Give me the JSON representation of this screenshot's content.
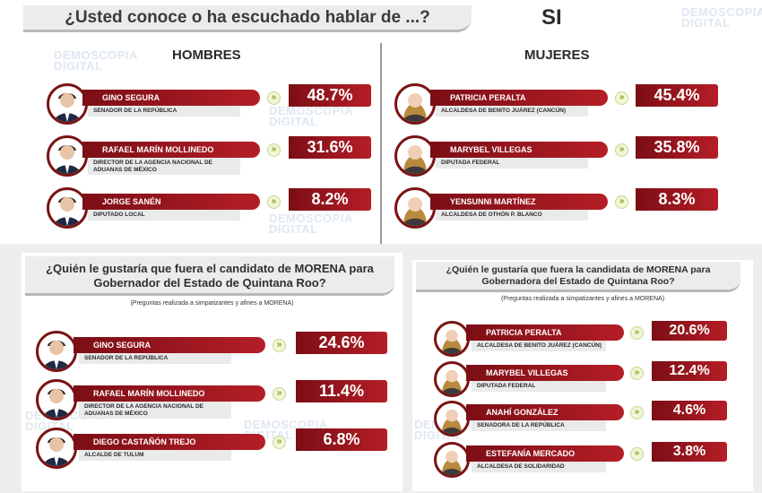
{
  "watermark": {
    "line1": "DEMOSCOPIA",
    "line2": "DIGITAL"
  },
  "top": {
    "title": "¿Usted conoce o ha escuchado hablar de ...?",
    "si_label": "SI",
    "men_header": "HOMBRES",
    "women_header": "MUJERES"
  },
  "bottom_left": {
    "question": "¿Quién le gustaría que fuera el candidato de MORENA para Gobernador del Estado de Quintana Roo?",
    "note": "(Preguntas realizada a simpatizantes y afines a MORENA)"
  },
  "bottom_right": {
    "question": "¿Quién le gustaría que fuera la candidata de MORENA para Gobernadora del Estado de Quintana Roo?",
    "note": "(Preguntas realizada a simpatizantes y afines a MORENA)"
  },
  "colors": {
    "bar_dark": "#7c0e16",
    "bar_light": "#b51e26",
    "arrow_green": "#8aa21b",
    "panel_bg": "#ffffff"
  },
  "chart_data": [
    {
      "type": "bar",
      "title": "¿Usted conoce o ha escuchado hablar de ...?",
      "subtitle": "HOMBRES",
      "unit": "%",
      "categories": [
        "GINO SEGURA",
        "RAFAEL MARÍN MOLLINEDO",
        "JORGE SANÉN"
      ],
      "roles": [
        "SENADOR DE LA REPÚBLICA",
        "DIRECTOR DE LA AGENCIA NACIONAL DE ADUANAS DE MÉXICO",
        "DIPUTADO LOCAL"
      ],
      "values": [
        48.7,
        31.6,
        8.2
      ],
      "labels": [
        "48.7%",
        "31.6%",
        "8.2%"
      ]
    },
    {
      "type": "bar",
      "title": "¿Usted conoce o ha escuchado hablar de ...?",
      "subtitle": "MUJERES",
      "unit": "%",
      "categories": [
        "PATRICIA PERALTA",
        "MARYBEL VILLEGAS",
        "YENSUNNI MARTÍNEZ"
      ],
      "roles": [
        "ALCALDESA DE BENITO JUÁREZ (CANCÚN)",
        "DIPUTADA FEDERAL",
        "ALCALDESA DE OTHÓN P. BLANCO"
      ],
      "values": [
        45.4,
        35.8,
        8.3
      ],
      "labels": [
        "45.4%",
        "35.8%",
        "8.3%"
      ]
    },
    {
      "type": "bar",
      "title": "¿Quién le gustaría que fuera el candidato de MORENA para Gobernador del Estado de Quintana Roo?",
      "unit": "%",
      "categories": [
        "GINO SEGURA",
        "RAFAEL MARÍN MOLLINEDO",
        "DIEGO CASTAÑÓN TREJO"
      ],
      "roles": [
        "SENADOR DE LA REPÚBLICA",
        "DIRECTOR DE LA AGENCIA NACIONAL DE ADUANAS DE MÉXICO",
        "ALCALDE DE TULUM"
      ],
      "values": [
        24.6,
        11.4,
        6.8
      ],
      "labels": [
        "24.6%",
        "11.4%",
        "6.8%"
      ]
    },
    {
      "type": "bar",
      "title": "¿Quién le gustaría que fuera la candidata de MORENA para Gobernadora del Estado de Quintana Roo?",
      "unit": "%",
      "categories": [
        "PATRICIA PERALTA",
        "MARYBEL VILLEGAS",
        "ANAHÍ GONZÁLEZ",
        "ESTEFANÍA MERCADO"
      ],
      "roles": [
        "ALCALDESA DE BENITO JUÁREZ (CANCÚN)",
        "DIPUTADA FEDERAL",
        "SENADORA DE LA REPÚBLICA",
        "ALCALDESA DE SOLIDARIDAD"
      ],
      "values": [
        20.6,
        12.4,
        4.6,
        3.8
      ],
      "labels": [
        "20.6%",
        "12.4%",
        "4.6%",
        "3.8%"
      ]
    }
  ]
}
